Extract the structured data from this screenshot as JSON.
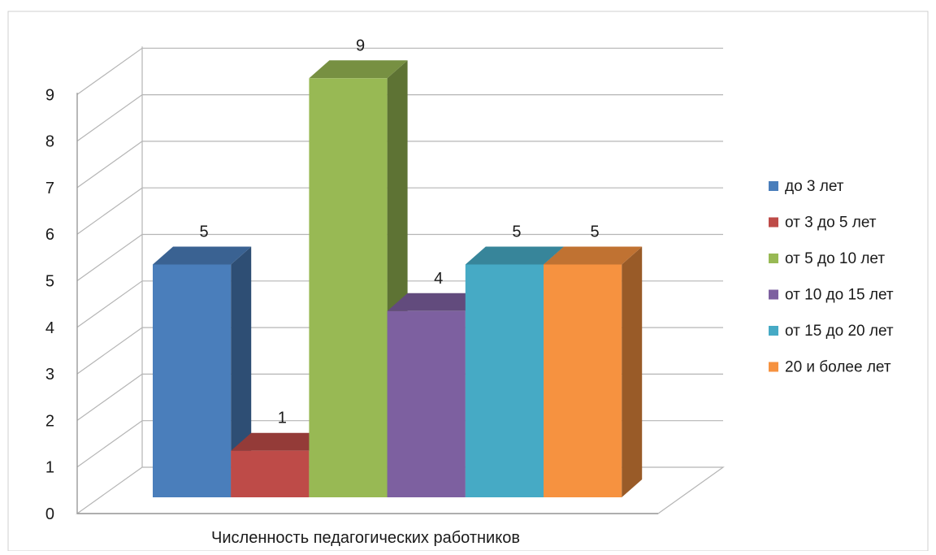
{
  "chart_data": {
    "type": "bar",
    "title": "",
    "xlabel": "Численность педагогических работников",
    "ylabel": "",
    "ylim": [
      0,
      9
    ],
    "yticks": [
      "0",
      "1",
      "2",
      "3",
      "4",
      "5",
      "6",
      "7",
      "8",
      "9"
    ],
    "grid": true,
    "legend_position": "right",
    "categories": [
      "Численность педагогических работников"
    ],
    "series": [
      {
        "name": "до 3 лет",
        "values": [
          5
        ],
        "value_label": "5",
        "color": "#4A7EBB"
      },
      {
        "name": "от 3 до 5 лет",
        "values": [
          1
        ],
        "value_label": "1",
        "color": "#BE4B48"
      },
      {
        "name": "от 5 до 10 лет",
        "values": [
          9
        ],
        "value_label": "9",
        "color": "#98B954"
      },
      {
        "name": "от 10 до 15 лет",
        "values": [
          4
        ],
        "value_label": "4",
        "color": "#7D60A0"
      },
      {
        "name": "от 15 до 20 лет",
        "values": [
          5
        ],
        "value_label": "5",
        "color": "#46AAC5"
      },
      {
        "name": "20 и более лет",
        "values": [
          5
        ],
        "value_label": "5",
        "color": "#F69240"
      }
    ]
  }
}
